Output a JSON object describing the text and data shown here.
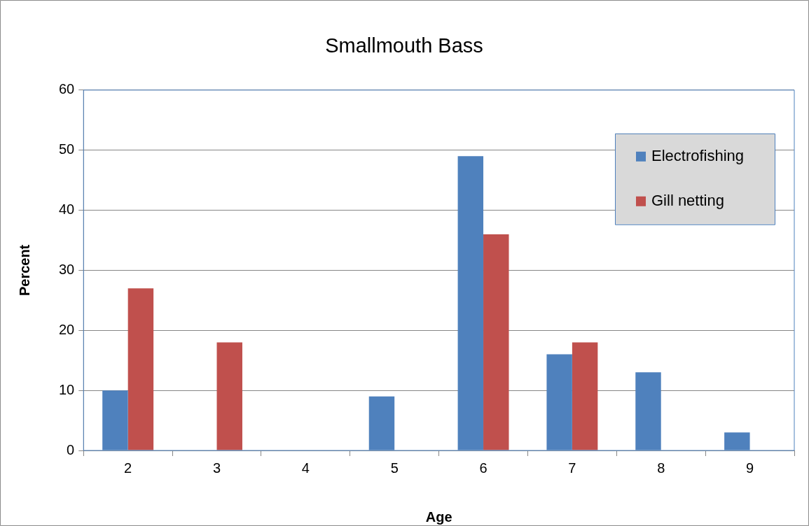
{
  "chart_data": {
    "type": "bar",
    "title": "Smallmouth Bass",
    "xlabel": "Age",
    "ylabel": "Percent",
    "categories": [
      "2",
      "3",
      "4",
      "5",
      "6",
      "7",
      "8",
      "9"
    ],
    "series": [
      {
        "name": "Electrofishing",
        "color": "#4f81bd",
        "values": [
          10,
          0,
          0,
          9,
          49,
          16,
          13,
          3
        ]
      },
      {
        "name": "Gill netting",
        "color": "#c0504d",
        "values": [
          27,
          18,
          0,
          0,
          36,
          18,
          0,
          0
        ]
      }
    ],
    "ylim": [
      0,
      60
    ],
    "yticks": [
      0,
      10,
      20,
      30,
      40,
      50,
      60
    ],
    "grid": "y",
    "legend": "top right"
  }
}
